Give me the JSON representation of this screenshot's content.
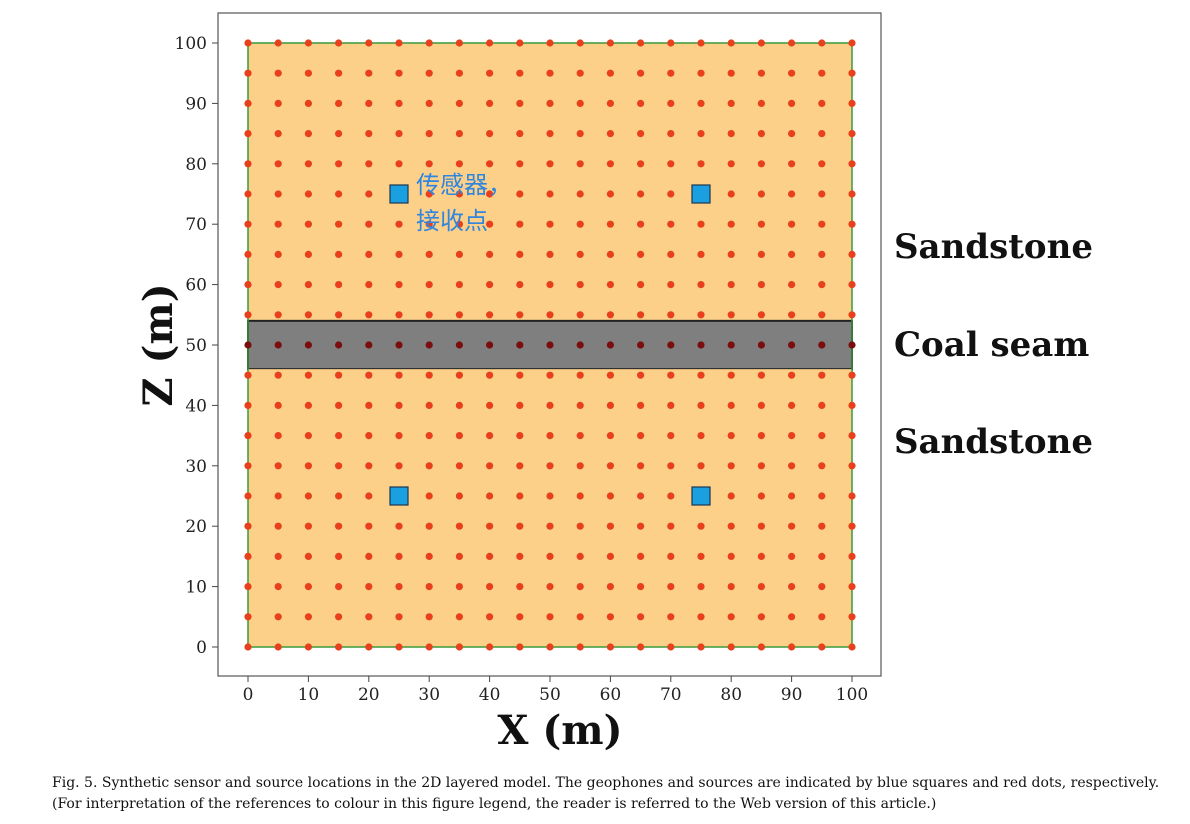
{
  "chart_data": {
    "type": "scatter",
    "xlabel": "X (m)",
    "ylabel": "Z (m)",
    "xlim": [
      0,
      100
    ],
    "ylim": [
      0,
      100
    ],
    "xticks": [
      0,
      10,
      20,
      30,
      40,
      50,
      60,
      70,
      80,
      90,
      100
    ],
    "yticks": [
      0,
      10,
      20,
      30,
      40,
      50,
      60,
      70,
      80,
      90,
      100
    ],
    "grid": false,
    "layers": [
      {
        "name": "Sandstone",
        "z_range": [
          54,
          100
        ],
        "color": "#fdd08a"
      },
      {
        "name": "Coal seam",
        "z_range": [
          46,
          54
        ],
        "color": "#7f7f7f"
      },
      {
        "name": "Sandstone",
        "z_range": [
          0,
          46
        ],
        "color": "#fdd08a"
      }
    ],
    "sources": {
      "marker": "circle",
      "color": "#e8401c",
      "x_values": [
        0,
        5,
        10,
        15,
        20,
        25,
        30,
        35,
        40,
        45,
        50,
        55,
        60,
        65,
        70,
        75,
        80,
        85,
        90,
        95,
        100
      ],
      "z_values": [
        0,
        5,
        10,
        15,
        20,
        25,
        30,
        35,
        40,
        45,
        50,
        55,
        60,
        65,
        70,
        75,
        80,
        85,
        90,
        95,
        100
      ]
    },
    "geophones": {
      "marker": "square",
      "color": "#1aa0e0",
      "points": [
        {
          "x": 25,
          "z": 75
        },
        {
          "x": 75,
          "z": 75
        },
        {
          "x": 25,
          "z": 25
        },
        {
          "x": 75,
          "z": 25
        }
      ]
    },
    "annotation": {
      "lines": [
        "传感器，",
        "接收点"
      ],
      "color": "#2e86de"
    }
  },
  "caption": "Fig. 5. Synthetic sensor and source locations in the 2D layered model. The geophones and sources are indicated by blue squares and red dots, respectively. (For interpretation of the references to colour in this figure legend, the reader is referred to the Web version of this article.)"
}
